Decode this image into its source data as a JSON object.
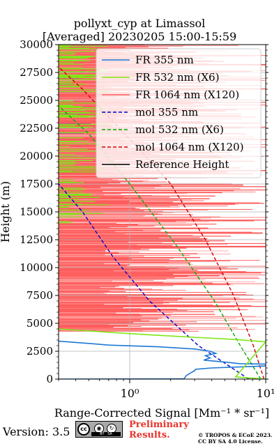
{
  "header": {
    "title_line1": "pollyxt_cyp at Limassol",
    "title_line2": "[Averaged] 20230205 15:00-15:59"
  },
  "footer": {
    "version": "Version: 3.5",
    "cc_badge": "cc BY SA",
    "preliminary_line1": "Preliminary",
    "preliminary_line2": "Results.",
    "copyright_line1": "© TROPOS & ECoE 2023.",
    "copyright_line2": "CC BY SA 4.0 License."
  },
  "colors": {
    "fr355": "#1f77d4",
    "fr532": "#7fe617",
    "fr1064": "#ff5c5c",
    "mol355": "#0000cc",
    "mol532": "#00aa00",
    "mol1064": "#cc0000",
    "reference": "#000000",
    "prelim": "#e8322b"
  },
  "chart_data": {
    "type": "line",
    "orientation": "profile",
    "xscale": "log",
    "xlim": [
      0.3,
      10
    ],
    "ylim": [
      0,
      30000
    ],
    "xlabel": "Range-Corrected Signal [Mm⁻¹ * sr⁻¹]",
    "ylabel": "Height (m)",
    "xticks": [
      1,
      10
    ],
    "xtick_labels": [
      "10⁰",
      "10¹"
    ],
    "yticks": [
      0,
      2500,
      5000,
      7500,
      10000,
      12500,
      15000,
      17500,
      20000,
      22500,
      25000,
      27500,
      30000
    ],
    "grid": true,
    "legend_position": "top-right",
    "legend": [
      {
        "label": "FR 355 nm",
        "color": "#1f77d4",
        "style": "solid"
      },
      {
        "label": "FR 532 nm (X6)",
        "color": "#7fe617",
        "style": "solid"
      },
      {
        "label": "FR 1064 nm (X120)",
        "color": "#ff5c5c",
        "style": "solid"
      },
      {
        "label": "mol 355 nm",
        "color": "#0000cc",
        "style": "dashed"
      },
      {
        "label": "mol 532 nm (X6)",
        "color": "#00aa00",
        "style": "dashed"
      },
      {
        "label": "mol 1064 nm (X120)",
        "color": "#cc0000",
        "style": "dashed"
      },
      {
        "label": "Reference Height",
        "color": "#000000",
        "style": "solid"
      }
    ],
    "series": [
      {
        "name": "mol 355 nm",
        "style": "dashed",
        "color": "#0000cc",
        "points": [
          [
            7.5,
            0
          ],
          [
            3.2,
            3000
          ],
          [
            1.4,
            7000
          ],
          [
            0.75,
            11000
          ],
          [
            0.45,
            15000
          ],
          [
            0.3,
            17500
          ]
        ]
      },
      {
        "name": "mol 532 nm (X6)",
        "style": "dashed",
        "color": "#00aa00",
        "points": [
          [
            9.2,
            0
          ],
          [
            6.5,
            3000
          ],
          [
            4.2,
            7000
          ],
          [
            2.2,
            12000
          ],
          [
            1.0,
            17500
          ],
          [
            0.5,
            22000
          ],
          [
            0.3,
            24500
          ]
        ]
      },
      {
        "name": "mol 1064 nm (X120)",
        "style": "dashed",
        "color": "#cc0000",
        "points": [
          [
            9.7,
            0
          ],
          [
            8.1,
            3000
          ],
          [
            5.8,
            7500
          ],
          [
            3.6,
            12500
          ],
          [
            2.0,
            17500
          ],
          [
            1.2,
            20500
          ],
          [
            0.7,
            23500
          ],
          [
            0.45,
            26000
          ],
          [
            0.3,
            28000
          ]
        ]
      },
      {
        "name": "FR 355 nm",
        "style": "solid",
        "color": "#1f77d4",
        "points": [
          [
            0.3,
            0
          ],
          [
            2.5,
            20
          ],
          [
            2.6,
            300
          ],
          [
            2.8,
            550
          ],
          [
            3.0,
            750
          ],
          [
            3.05,
            880
          ],
          [
            4.0,
            1000
          ],
          [
            7.5,
            1120
          ],
          [
            10,
            1180
          ],
          [
            10,
            1350
          ],
          [
            6.5,
            1380
          ],
          [
            4.8,
            1550
          ],
          [
            3.5,
            1700
          ],
          [
            3.9,
            1900
          ],
          [
            3.6,
            2100
          ],
          [
            4.3,
            2300
          ],
          [
            3.9,
            2500
          ],
          [
            3.0,
            2700
          ],
          [
            1.6,
            2900
          ],
          [
            0.7,
            3050
          ],
          [
            0.5,
            3200
          ],
          [
            0.3,
            3400
          ]
        ]
      },
      {
        "name": "FR 532 nm (X6)",
        "style": "solid",
        "color": "#7fe617",
        "points": [
          [
            10,
            0
          ],
          [
            6.0,
            200
          ],
          [
            10,
            3350
          ],
          [
            6.0,
            3550
          ],
          [
            3.0,
            3750
          ],
          [
            1.5,
            3950
          ],
          [
            0.7,
            4200
          ],
          [
            0.3,
            4500
          ]
        ]
      },
      {
        "name": "Reference Height",
        "style": "solid",
        "color": "#000000",
        "points": []
      }
    ]
  }
}
